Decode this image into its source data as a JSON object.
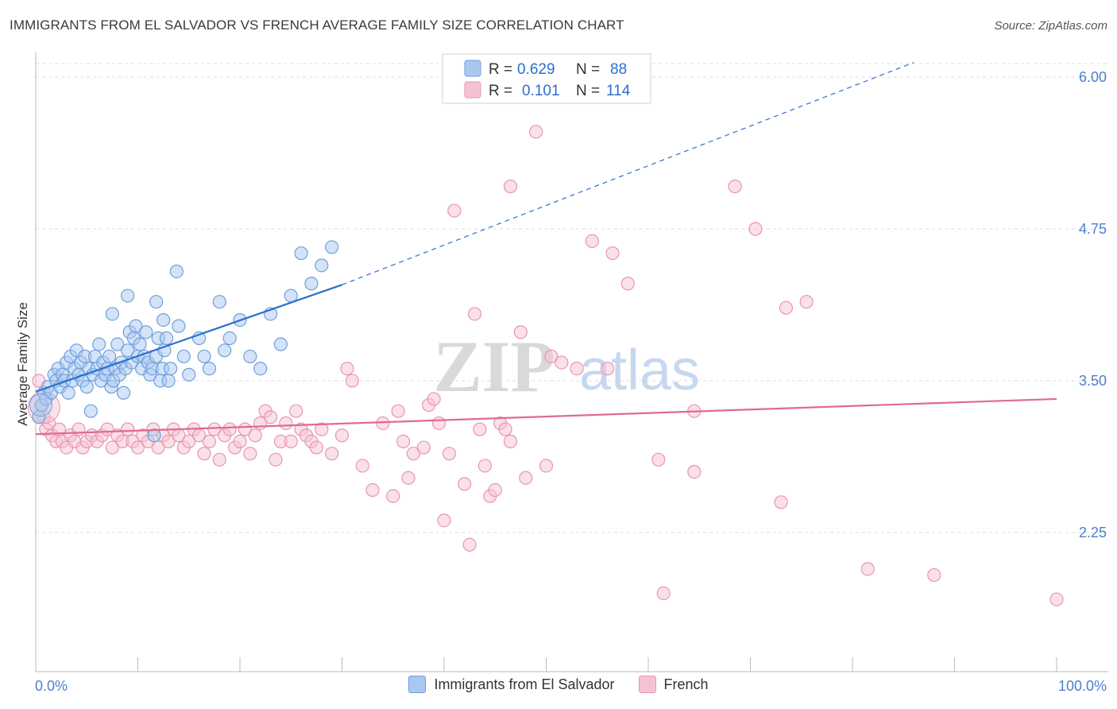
{
  "header": {
    "title": "IMMIGRANTS FROM EL SALVADOR VS FRENCH AVERAGE FAMILY SIZE CORRELATION CHART",
    "source": "Source: ZipAtlas.com"
  },
  "watermark": {
    "zip": "ZIP",
    "atlas": "atlas"
  },
  "colors": {
    "blue_fill": "#a9c8f0",
    "blue_stroke": "#6e9fdc",
    "blue_line": "#2a6fcf",
    "pink_fill": "#f6c2d2",
    "pink_stroke": "#e995b0",
    "pink_line": "#e06a93",
    "tick_label": "#4a7fd0",
    "grid": "#dddddd"
  },
  "stats_legend": [
    {
      "r_label": "R =",
      "r_value": "0.629",
      "n_label": "N =",
      "n_value": "88",
      "series": "blue"
    },
    {
      "r_label": "R =",
      "r_value": "0.101",
      "n_label": "N =",
      "n_value": "114",
      "series": "pink"
    }
  ],
  "bottom_legend": [
    {
      "label": "Immigrants from El Salvador",
      "series": "blue"
    },
    {
      "label": "French",
      "series": "pink"
    }
  ],
  "chart_data": {
    "type": "scatter",
    "title": "IMMIGRANTS FROM EL SALVADOR VS FRENCH AVERAGE FAMILY SIZE CORRELATION CHART",
    "xlabel": "",
    "ylabel": "Average Family Size",
    "xlim": [
      0,
      100
    ],
    "ylim": [
      1.5,
      6.2
    ],
    "x_tick_labels": [
      "0.0%",
      "100.0%"
    ],
    "y_ticks": [
      2.25,
      3.5,
      4.75,
      6.0
    ],
    "y_tick_labels": [
      "2.25",
      "3.50",
      "4.75",
      "6.00"
    ],
    "grid": true,
    "legend_position": "top-center and bottom",
    "series": [
      {
        "name": "Immigrants from El Salvador",
        "color": "#6e9fdc",
        "trend": {
          "x0": 0,
          "y0": 3.41,
          "x1": 30,
          "y1": 4.29,
          "dashed_to_x": 86,
          "dashed_to_y": 6.12
        },
        "points": [
          [
            0.3,
            3.2
          ],
          [
            0.6,
            3.3
          ],
          [
            0.8,
            3.4
          ],
          [
            1.0,
            3.35
          ],
          [
            1.2,
            3.45
          ],
          [
            1.5,
            3.4
          ],
          [
            1.8,
            3.55
          ],
          [
            2.0,
            3.5
          ],
          [
            2.2,
            3.6
          ],
          [
            2.4,
            3.45
          ],
          [
            2.6,
            3.55
          ],
          [
            2.8,
            3.5
          ],
          [
            3.0,
            3.65
          ],
          [
            3.2,
            3.4
          ],
          [
            3.4,
            3.7
          ],
          [
            3.6,
            3.5
          ],
          [
            3.8,
            3.6
          ],
          [
            4.0,
            3.75
          ],
          [
            4.2,
            3.55
          ],
          [
            4.4,
            3.65
          ],
          [
            4.6,
            3.5
          ],
          [
            4.8,
            3.7
          ],
          [
            5.0,
            3.45
          ],
          [
            5.2,
            3.6
          ],
          [
            5.4,
            3.25
          ],
          [
            5.6,
            3.55
          ],
          [
            5.8,
            3.7
          ],
          [
            6.0,
            3.6
          ],
          [
            6.2,
            3.8
          ],
          [
            6.4,
            3.5
          ],
          [
            6.6,
            3.65
          ],
          [
            6.8,
            3.55
          ],
          [
            7.0,
            3.6
          ],
          [
            7.2,
            3.7
          ],
          [
            7.4,
            3.45
          ],
          [
            7.6,
            3.5
          ],
          [
            7.8,
            3.6
          ],
          [
            8.0,
            3.8
          ],
          [
            8.2,
            3.55
          ],
          [
            8.4,
            3.65
          ],
          [
            8.6,
            3.4
          ],
          [
            8.8,
            3.6
          ],
          [
            9.0,
            3.75
          ],
          [
            9.2,
            3.9
          ],
          [
            9.4,
            3.65
          ],
          [
            9.6,
            3.85
          ],
          [
            9.8,
            3.95
          ],
          [
            10.0,
            3.7
          ],
          [
            10.2,
            3.8
          ],
          [
            10.4,
            3.6
          ],
          [
            10.6,
            3.7
          ],
          [
            10.8,
            3.9
          ],
          [
            11.0,
            3.65
          ],
          [
            11.2,
            3.55
          ],
          [
            11.4,
            3.6
          ],
          [
            11.6,
            3.05
          ],
          [
            11.8,
            3.7
          ],
          [
            12.0,
            3.85
          ],
          [
            12.2,
            3.5
          ],
          [
            12.4,
            3.6
          ],
          [
            12.6,
            3.75
          ],
          [
            12.8,
            3.85
          ],
          [
            13.0,
            3.5
          ],
          [
            13.2,
            3.6
          ],
          [
            14.0,
            3.95
          ],
          [
            14.5,
            3.7
          ],
          [
            15.0,
            3.55
          ],
          [
            16.0,
            3.85
          ],
          [
            16.5,
            3.7
          ],
          [
            17.0,
            3.6
          ],
          [
            18.0,
            4.15
          ],
          [
            18.5,
            3.75
          ],
          [
            19.0,
            3.85
          ],
          [
            20.0,
            4.0
          ],
          [
            21.0,
            3.7
          ],
          [
            22.0,
            3.6
          ],
          [
            23.0,
            4.05
          ],
          [
            24.0,
            3.8
          ],
          [
            25.0,
            4.2
          ],
          [
            26.0,
            4.55
          ],
          [
            27.0,
            4.3
          ],
          [
            28.0,
            4.45
          ],
          [
            29.0,
            4.6
          ],
          [
            7.5,
            4.05
          ],
          [
            9.0,
            4.2
          ],
          [
            11.8,
            4.15
          ],
          [
            12.5,
            4.0
          ],
          [
            13.8,
            4.4
          ]
        ]
      },
      {
        "name": "French",
        "color": "#e995b0",
        "trend": {
          "x0": 0,
          "y0": 3.06,
          "x1": 100,
          "y1": 3.35
        },
        "points": [
          [
            0.3,
            3.5
          ],
          [
            0.5,
            3.3
          ],
          [
            0.8,
            3.2
          ],
          [
            1.0,
            3.1
          ],
          [
            1.3,
            3.15
          ],
          [
            1.6,
            3.05
          ],
          [
            2.0,
            3.0
          ],
          [
            2.3,
            3.1
          ],
          [
            2.6,
            3.0
          ],
          [
            3.0,
            2.95
          ],
          [
            3.4,
            3.05
          ],
          [
            3.8,
            3.0
          ],
          [
            4.2,
            3.1
          ],
          [
            4.6,
            2.95
          ],
          [
            5.0,
            3.0
          ],
          [
            5.5,
            3.05
          ],
          [
            6.0,
            3.0
          ],
          [
            6.5,
            3.05
          ],
          [
            7.0,
            3.1
          ],
          [
            7.5,
            2.95
          ],
          [
            8.0,
            3.05
          ],
          [
            8.5,
            3.0
          ],
          [
            9.0,
            3.1
          ],
          [
            9.5,
            3.0
          ],
          [
            10.0,
            2.95
          ],
          [
            10.5,
            3.05
          ],
          [
            11.0,
            3.0
          ],
          [
            11.5,
            3.1
          ],
          [
            12.0,
            2.95
          ],
          [
            12.5,
            3.05
          ],
          [
            13.0,
            3.0
          ],
          [
            13.5,
            3.1
          ],
          [
            14.0,
            3.05
          ],
          [
            14.5,
            2.95
          ],
          [
            15.0,
            3.0
          ],
          [
            15.5,
            3.1
          ],
          [
            16.0,
            3.05
          ],
          [
            16.5,
            2.9
          ],
          [
            17.0,
            3.0
          ],
          [
            17.5,
            3.1
          ],
          [
            18.0,
            2.85
          ],
          [
            18.5,
            3.05
          ],
          [
            19.0,
            3.1
          ],
          [
            19.5,
            2.95
          ],
          [
            20.0,
            3.0
          ],
          [
            20.5,
            3.1
          ],
          [
            21.0,
            2.9
          ],
          [
            21.5,
            3.05
          ],
          [
            22.0,
            3.15
          ],
          [
            22.5,
            3.25
          ],
          [
            23.0,
            3.2
          ],
          [
            23.5,
            2.85
          ],
          [
            24.0,
            3.0
          ],
          [
            24.5,
            3.15
          ],
          [
            25.0,
            3.0
          ],
          [
            25.5,
            3.25
          ],
          [
            26.0,
            3.1
          ],
          [
            26.5,
            3.05
          ],
          [
            27.0,
            3.0
          ],
          [
            27.5,
            2.95
          ],
          [
            28.0,
            3.1
          ],
          [
            29.0,
            2.9
          ],
          [
            30.0,
            3.05
          ],
          [
            30.5,
            3.6
          ],
          [
            31.0,
            3.5
          ],
          [
            32.0,
            2.8
          ],
          [
            33.0,
            2.6
          ],
          [
            34.0,
            3.15
          ],
          [
            35.0,
            2.55
          ],
          [
            35.5,
            3.25
          ],
          [
            36.0,
            3.0
          ],
          [
            36.5,
            2.7
          ],
          [
            37.0,
            2.9
          ],
          [
            38.0,
            2.95
          ],
          [
            38.5,
            3.3
          ],
          [
            39.0,
            3.35
          ],
          [
            39.5,
            3.15
          ],
          [
            40.0,
            2.35
          ],
          [
            40.5,
            2.9
          ],
          [
            41.0,
            4.9
          ],
          [
            42.0,
            2.65
          ],
          [
            42.5,
            2.15
          ],
          [
            43.0,
            4.05
          ],
          [
            43.5,
            3.1
          ],
          [
            44.0,
            2.8
          ],
          [
            44.5,
            2.55
          ],
          [
            45.0,
            2.6
          ],
          [
            45.5,
            3.15
          ],
          [
            46.0,
            3.1
          ],
          [
            46.5,
            3.0
          ],
          [
            46.5,
            5.1
          ],
          [
            47.5,
            3.9
          ],
          [
            48.0,
            2.7
          ],
          [
            49.0,
            5.55
          ],
          [
            50.0,
            2.8
          ],
          [
            50.5,
            3.7
          ],
          [
            51.5,
            3.65
          ],
          [
            53.0,
            3.6
          ],
          [
            54.5,
            4.65
          ],
          [
            56.0,
            3.6
          ],
          [
            56.5,
            4.55
          ],
          [
            58.0,
            4.3
          ],
          [
            61.0,
            2.85
          ],
          [
            61.5,
            1.75
          ],
          [
            64.5,
            2.75
          ],
          [
            64.5,
            3.25
          ],
          [
            68.5,
            5.1
          ],
          [
            70.5,
            4.75
          ],
          [
            73.0,
            2.5
          ],
          [
            73.5,
            4.1
          ],
          [
            75.5,
            4.15
          ],
          [
            81.5,
            1.95
          ],
          [
            88.0,
            1.9
          ],
          [
            100.0,
            1.7
          ]
        ]
      }
    ]
  }
}
